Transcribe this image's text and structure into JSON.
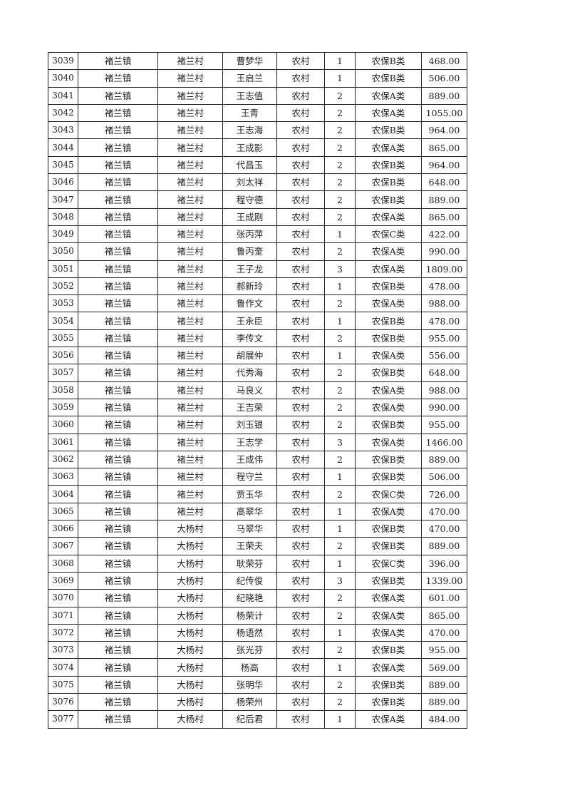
{
  "rows": [
    [
      "3039",
      "褚兰镇",
      "褚兰村",
      "曹梦华",
      "农村",
      "1",
      "农保B类",
      "468.00"
    ],
    [
      "3040",
      "褚兰镇",
      "褚兰村",
      "王启兰",
      "农村",
      "1",
      "农保B类",
      "506.00"
    ],
    [
      "3041",
      "褚兰镇",
      "褚兰村",
      "王志值",
      "农村",
      "2",
      "农保A类",
      "889.00"
    ],
    [
      "3042",
      "褚兰镇",
      "褚兰村",
      "王青",
      "农村",
      "2",
      "农保A类",
      "1055.00"
    ],
    [
      "3043",
      "褚兰镇",
      "褚兰村",
      "王志海",
      "农村",
      "2",
      "农保B类",
      "964.00"
    ],
    [
      "3044",
      "褚兰镇",
      "褚兰村",
      "王成影",
      "农村",
      "2",
      "农保A类",
      "865.00"
    ],
    [
      "3045",
      "褚兰镇",
      "褚兰村",
      "代昌玉",
      "农村",
      "2",
      "农保B类",
      "964.00"
    ],
    [
      "3046",
      "褚兰镇",
      "褚兰村",
      "刘太祥",
      "农村",
      "2",
      "农保B类",
      "648.00"
    ],
    [
      "3047",
      "褚兰镇",
      "褚兰村",
      "程守德",
      "农村",
      "2",
      "农保B类",
      "889.00"
    ],
    [
      "3048",
      "褚兰镇",
      "褚兰村",
      "王成刚",
      "农村",
      "2",
      "农保A类",
      "865.00"
    ],
    [
      "3049",
      "褚兰镇",
      "褚兰村",
      "张丙萍",
      "农村",
      "1",
      "农保C类",
      "422.00"
    ],
    [
      "3050",
      "褚兰镇",
      "褚兰村",
      "鲁丙奎",
      "农村",
      "2",
      "农保A类",
      "990.00"
    ],
    [
      "3051",
      "褚兰镇",
      "褚兰村",
      "王子龙",
      "农村",
      "3",
      "农保A类",
      "1809.00"
    ],
    [
      "3052",
      "褚兰镇",
      "褚兰村",
      "郝新玲",
      "农村",
      "1",
      "农保B类",
      "478.00"
    ],
    [
      "3053",
      "褚兰镇",
      "褚兰村",
      "鲁作文",
      "农村",
      "2",
      "农保A类",
      "988.00"
    ],
    [
      "3054",
      "褚兰镇",
      "褚兰村",
      "王永臣",
      "农村",
      "1",
      "农保B类",
      "478.00"
    ],
    [
      "3055",
      "褚兰镇",
      "褚兰村",
      "李传文",
      "农村",
      "2",
      "农保B类",
      "955.00"
    ],
    [
      "3056",
      "褚兰镇",
      "褚兰村",
      "胡展仲",
      "农村",
      "1",
      "农保A类",
      "556.00"
    ],
    [
      "3057",
      "褚兰镇",
      "褚兰村",
      "代秀海",
      "农村",
      "2",
      "农保B类",
      "648.00"
    ],
    [
      "3058",
      "褚兰镇",
      "褚兰村",
      "马良义",
      "农村",
      "2",
      "农保A类",
      "988.00"
    ],
    [
      "3059",
      "褚兰镇",
      "褚兰村",
      "王吉荣",
      "农村",
      "2",
      "农保A类",
      "990.00"
    ],
    [
      "3060",
      "褚兰镇",
      "褚兰村",
      "刘玉银",
      "农村",
      "2",
      "农保B类",
      "955.00"
    ],
    [
      "3061",
      "褚兰镇",
      "褚兰村",
      "王志学",
      "农村",
      "3",
      "农保A类",
      "1466.00"
    ],
    [
      "3062",
      "褚兰镇",
      "褚兰村",
      "王成伟",
      "农村",
      "2",
      "农保B类",
      "889.00"
    ],
    [
      "3063",
      "褚兰镇",
      "褚兰村",
      "程守兰",
      "农村",
      "1",
      "农保B类",
      "506.00"
    ],
    [
      "3064",
      "褚兰镇",
      "褚兰村",
      "贾玉华",
      "农村",
      "2",
      "农保C类",
      "726.00"
    ],
    [
      "3065",
      "褚兰镇",
      "褚兰村",
      "高翠华",
      "农村",
      "1",
      "农保A类",
      "470.00"
    ],
    [
      "3066",
      "褚兰镇",
      "大杨村",
      "马翠华",
      "农村",
      "1",
      "农保B类",
      "470.00"
    ],
    [
      "3067",
      "褚兰镇",
      "大杨村",
      "王荣夫",
      "农村",
      "2",
      "农保B类",
      "889.00"
    ],
    [
      "3068",
      "褚兰镇",
      "大杨村",
      "耿荣芬",
      "农村",
      "1",
      "农保C类",
      "396.00"
    ],
    [
      "3069",
      "褚兰镇",
      "大杨村",
      "纪传俊",
      "农村",
      "3",
      "农保B类",
      "1339.00"
    ],
    [
      "3070",
      "褚兰镇",
      "大杨村",
      "纪晓艳",
      "农村",
      "2",
      "农保A类",
      "601.00"
    ],
    [
      "3071",
      "褚兰镇",
      "大杨村",
      "杨荣计",
      "农村",
      "2",
      "农保A类",
      "865.00"
    ],
    [
      "3072",
      "褚兰镇",
      "大杨村",
      "杨语然",
      "农村",
      "1",
      "农保A类",
      "470.00"
    ],
    [
      "3073",
      "褚兰镇",
      "大杨村",
      "张光芬",
      "农村",
      "2",
      "农保B类",
      "955.00"
    ],
    [
      "3074",
      "褚兰镇",
      "大杨村",
      "杨高",
      "农村",
      "1",
      "农保A类",
      "569.00"
    ],
    [
      "3075",
      "褚兰镇",
      "大杨村",
      "张明华",
      "农村",
      "2",
      "农保B类",
      "889.00"
    ],
    [
      "3076",
      "褚兰镇",
      "大杨村",
      "杨荣州",
      "农村",
      "2",
      "农保B类",
      "889.00"
    ],
    [
      "3077",
      "褚兰镇",
      "大杨村",
      "纪后君",
      "农村",
      "1",
      "农保A类",
      "484.00"
    ]
  ]
}
